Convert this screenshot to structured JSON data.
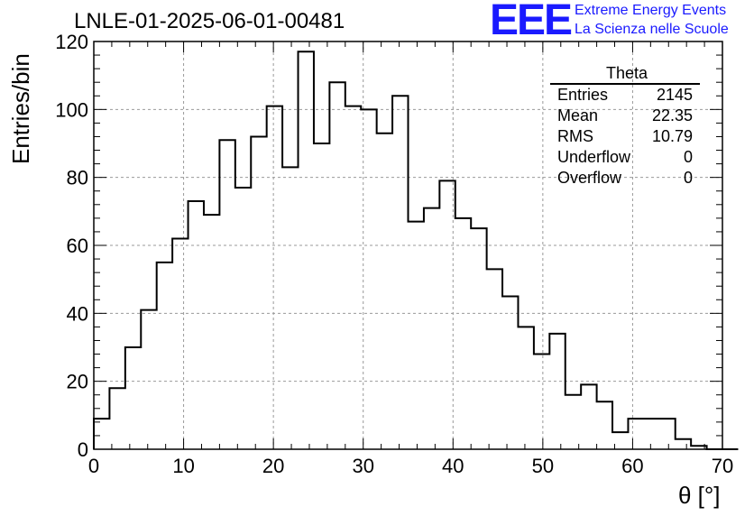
{
  "title": "LNLE-01-2025-06-01-00481",
  "logo": {
    "mark": "EEE",
    "line1": "Extreme Energy Events",
    "line2": "La Scienza nelle Scuole"
  },
  "stats": {
    "title": "Theta",
    "rows": [
      {
        "label": "Entries",
        "value": "2145"
      },
      {
        "label": "Mean",
        "value": "22.35"
      },
      {
        "label": "RMS",
        "value": "10.79"
      },
      {
        "label": "Underflow",
        "value": "0"
      },
      {
        "label": "Overflow",
        "value": "0"
      }
    ]
  },
  "chart_data": {
    "type": "histogram",
    "title": "LNLE-01-2025-06-01-00481",
    "xlabel": "θ [°]",
    "ylabel": "Entries/bin",
    "xlim": [
      0,
      70
    ],
    "ylim": [
      0,
      120
    ],
    "grid": true,
    "bin_width": 1.75,
    "x_ticks": [
      0,
      10,
      20,
      30,
      40,
      50,
      60,
      70
    ],
    "y_ticks": [
      0,
      20,
      40,
      60,
      80,
      100,
      120
    ],
    "bin_edges_start": 0,
    "values": [
      9,
      18,
      30,
      41,
      55,
      62,
      73,
      69,
      91,
      77,
      92,
      101,
      83,
      117,
      90,
      108,
      101,
      100,
      93,
      104,
      67,
      71,
      79,
      68,
      65,
      53,
      45,
      36,
      28,
      34,
      16,
      19,
      14,
      5,
      9,
      9,
      9,
      3,
      1,
      0,
      0
    ]
  }
}
